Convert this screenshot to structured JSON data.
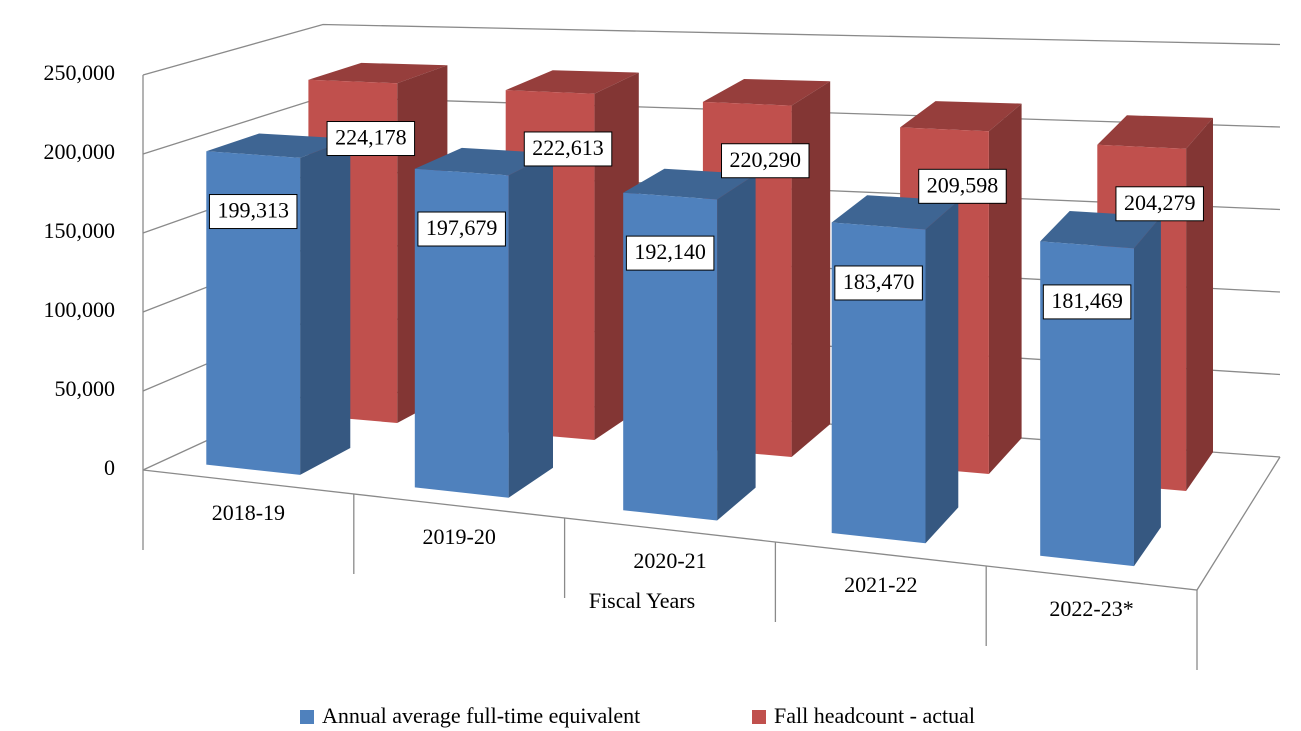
{
  "chart_data": {
    "type": "bar3d",
    "categories": [
      "2018-19",
      "2019-20",
      "2020-21",
      "2021-22",
      "2022-23*"
    ],
    "series": [
      {
        "name": "Annual average full-time equivalent",
        "color": "#4f81bd",
        "values": [
          199313,
          197679,
          192140,
          183470,
          181469
        ],
        "value_labels": [
          "199,313",
          "197,679",
          "192,140",
          "183,470",
          "181,469"
        ]
      },
      {
        "name": "Fall headcount - actual",
        "color": "#c0504d",
        "values": [
          224178,
          222613,
          220290,
          209598,
          204279
        ],
        "value_labels": [
          "224,178",
          "222,613",
          "220,290",
          "209,598",
          "204,279"
        ]
      }
    ],
    "xlabel": "Fiscal Years",
    "ylim": [
      0,
      250000
    ],
    "yticks": [
      0,
      {
        "value": 50000,
        "label": "50,000"
      },
      {
        "value": 100000,
        "label": "100,000"
      },
      {
        "value": 150000,
        "label": "150,000"
      },
      {
        "value": 200000,
        "label": "200,000"
      },
      {
        "value": 250000,
        "label": "250,000"
      }
    ],
    "grid": true,
    "legend": "bottom"
  }
}
